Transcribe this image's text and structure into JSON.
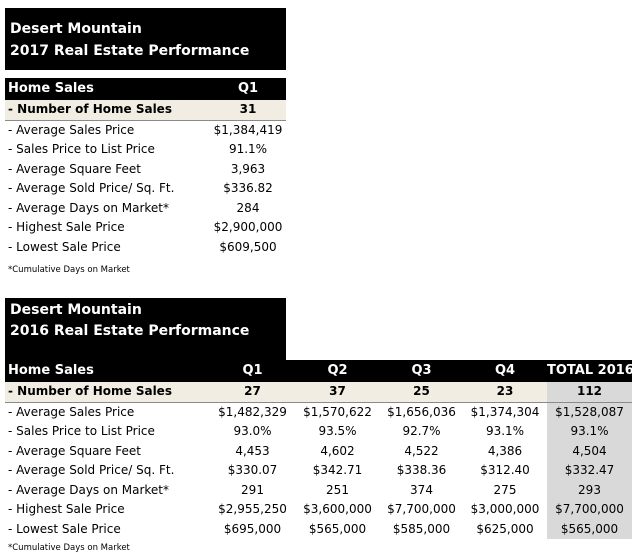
{
  "t2017": {
    "title1": "Desert Mountain",
    "title2": "2017 Real Estate Performance",
    "col_label": "Home Sales",
    "columns": [
      "Q1"
    ],
    "rows": [
      {
        "label": "- Number of Home Sales",
        "values": [
          "31"
        ]
      },
      {
        "label": "- Average Sales Price",
        "values": [
          "$1,384,419"
        ]
      },
      {
        "label": "- Sales Price to List Price",
        "values": [
          "91.1%"
        ]
      },
      {
        "label": "- Average Square Feet",
        "values": [
          "3,963"
        ]
      },
      {
        "label": "- Average Sold Price/ Sq. Ft.",
        "values": [
          "$336.82"
        ]
      },
      {
        "label": "- Average Days on Market*",
        "values": [
          "284"
        ]
      },
      {
        "label": "- Highest Sale Price",
        "values": [
          "$2,900,000"
        ]
      },
      {
        "label": "- Lowest Sale Price",
        "values": [
          "$609,500"
        ]
      }
    ],
    "footnote": "*Cumulative Days on Market"
  },
  "t2016": {
    "title1": "Desert Mountain",
    "title2": "2016 Real Estate Performance",
    "col_label": "Home Sales",
    "columns": [
      "Q1",
      "Q2",
      "Q3",
      "Q4",
      "TOTAL 2016"
    ],
    "rows": [
      {
        "label": "- Number of Home Sales",
        "values": [
          "27",
          "37",
          "25",
          "23",
          "112"
        ]
      },
      {
        "label": "- Average Sales Price",
        "values": [
          "$1,482,329",
          "$1,570,622",
          "$1,656,036",
          "$1,374,304",
          "$1,528,087"
        ]
      },
      {
        "label": "- Sales Price to List Price",
        "values": [
          "93.0%",
          "93.5%",
          "92.7%",
          "93.1%",
          "93.1%"
        ]
      },
      {
        "label": "- Average Square Feet",
        "values": [
          "4,453",
          "4,602",
          "4,522",
          "4,386",
          "4,504"
        ]
      },
      {
        "label": "- Average Sold Price/ Sq. Ft.",
        "values": [
          "$330.07",
          "$342.71",
          "$338.36",
          "$312.40",
          "$332.47"
        ]
      },
      {
        "label": "- Average Days on Market*",
        "values": [
          "291",
          "251",
          "374",
          "275",
          "293"
        ]
      },
      {
        "label": "- Highest Sale Price",
        "values": [
          "$2,955,250",
          "$3,600,000",
          "$7,700,000",
          "$3,000,000",
          "$7,700,000"
        ]
      },
      {
        "label": "- Lowest Sale Price",
        "values": [
          "$695,000",
          "$565,000",
          "$585,000",
          "$625,000",
          "$565,000"
        ]
      }
    ],
    "footnote": "*Cumulative Days on Market"
  }
}
